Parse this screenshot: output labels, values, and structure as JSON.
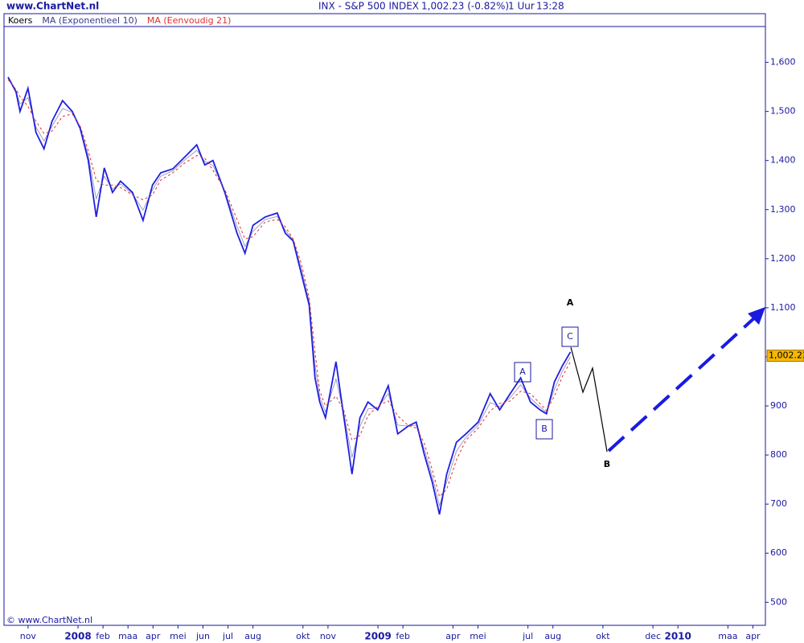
{
  "chart_data": {
    "type": "line",
    "site": "www.ChartNet.nl",
    "title": "INX - S&P 500 INDEX",
    "quote": "1,002.23 (-0.82%)",
    "interval": "1 Uur",
    "time": "13:28",
    "footer": "© www.ChartNet.nl",
    "x": [
      -0.8,
      -0.48,
      -0.32,
      0,
      0.32,
      0.64,
      0.96,
      1.38,
      1.77,
      2.09,
      2.41,
      2.73,
      3.05,
      3.38,
      3.7,
      4.18,
      4.6,
      4.98,
      5.31,
      5.79,
      6.27,
      6.75,
      7.07,
      7.4,
      7.88,
      8.36,
      8.68,
      9.0,
      9.49,
      9.97,
      10.29,
      10.61,
      10.93,
      11.25,
      11.48,
      11.67,
      11.9,
      12.32,
      12.64,
      12.96,
      13.28,
      13.6,
      13.99,
      14.41,
      14.79,
      15.21,
      15.53,
      15.85,
      16.17,
      16.46,
      16.75,
      17.14,
      17.52,
      18.01,
      18.49,
      18.87,
      19.29,
      19.71,
      20.1,
      20.48,
      20.74,
      21.06,
      21.38,
      21.7
    ],
    "series": [
      {
        "name": "Koers",
        "color": "#1f1fe0",
        "values": [
          1570,
          1540,
          1500,
          1547,
          1457,
          1424,
          1480,
          1522,
          1500,
          1465,
          1400,
          1285,
          1385,
          1335,
          1358,
          1335,
          1278,
          1350,
          1375,
          1383,
          1407,
          1432,
          1391,
          1400,
          1334,
          1252,
          1211,
          1268,
          1285,
          1293,
          1252,
          1236,
          1170,
          1105,
          957,
          908,
          876,
          990,
          876,
          761,
          876,
          908,
          892,
          941,
          843,
          859,
          867,
          802,
          745,
          679,
          761,
          826,
          843,
          867,
          925,
          892,
          925,
          957,
          908,
          892,
          884,
          949,
          982,
          1010
        ]
      },
      {
        "name": "MA (Exponentieel 10)",
        "color": "#3a3a8c",
        "values": [
          1568,
          1542,
          1515,
          1528,
          1468,
          1440,
          1470,
          1506,
          1498,
          1468,
          1410,
          1322,
          1368,
          1342,
          1352,
          1332,
          1299,
          1340,
          1368,
          1379,
          1401,
          1421,
          1398,
          1390,
          1337,
          1266,
          1225,
          1256,
          1280,
          1286,
          1258,
          1238,
          1180,
          1112,
          983,
          919,
          888,
          955,
          883,
          795,
          858,
          894,
          896,
          925,
          861,
          859,
          861,
          813,
          757,
          697,
          745,
          808,
          836,
          861,
          907,
          898,
          917,
          943,
          916,
          898,
          887,
          934,
          971,
          1000
        ]
      },
      {
        "name": "MA (Eenvoudig 21)",
        "color": "#e03030",
        "values": [
          1565,
          1545,
          1530,
          1510,
          1480,
          1455,
          1460,
          1490,
          1495,
          1470,
          1420,
          1360,
          1350,
          1350,
          1345,
          1330,
          1320,
          1330,
          1360,
          1375,
          1395,
          1410,
          1405,
          1380,
          1340,
          1280,
          1240,
          1245,
          1275,
          1280,
          1265,
          1240,
          1190,
          1120,
          1010,
          930,
          900,
          920,
          890,
          830,
          840,
          880,
          900,
          910,
          880,
          860,
          855,
          825,
          770,
          715,
          730,
          790,
          830,
          855,
          890,
          905,
          910,
          930,
          925,
          905,
          890,
          920,
          960,
          990
        ]
      }
    ],
    "current": {
      "value": 1002.23,
      "label": "1,002.23"
    },
    "ylim": [
      453,
      1673
    ],
    "yticks": [
      500,
      600,
      700,
      800,
      900,
      {
        "value": 1000,
        "label": "1,000"
      },
      {
        "value": 1100,
        "label": "1,100"
      },
      {
        "value": 1200,
        "label": "1,200"
      },
      {
        "value": 1300,
        "label": "1,300"
      },
      {
        "value": 1400,
        "label": "1,400"
      },
      {
        "value": 1500,
        "label": "1,500"
      },
      {
        "value": 1600,
        "label": "1,600"
      }
    ],
    "xlim": [
      -0.96,
      29.5
    ],
    "xticks": [
      {
        "value": 0,
        "label": "nov"
      },
      {
        "value": 2,
        "label": "2008"
      },
      {
        "value": 3,
        "label": "feb"
      },
      {
        "value": 4,
        "label": "maa"
      },
      {
        "value": 5,
        "label": "apr"
      },
      {
        "value": 6,
        "label": "mei"
      },
      {
        "value": 7,
        "label": "jun"
      },
      {
        "value": 8,
        "label": "jul"
      },
      {
        "value": 9,
        "label": "aug"
      },
      {
        "value": 11,
        "label": "okt"
      },
      {
        "value": 12,
        "label": "nov"
      },
      {
        "value": 14,
        "label": "2009"
      },
      {
        "value": 15,
        "label": "feb"
      },
      {
        "value": 17,
        "label": "apr"
      },
      {
        "value": 18,
        "label": "mei"
      },
      {
        "value": 20,
        "label": "jul"
      },
      {
        "value": 21,
        "label": "aug"
      },
      {
        "value": 23,
        "label": "okt"
      },
      {
        "value": 25,
        "label": "dec"
      },
      {
        "value": 26,
        "label": "2010"
      },
      {
        "value": 28,
        "label": "maa"
      },
      {
        "value": 29,
        "label": "apr"
      }
    ],
    "annotations": [
      "A",
      "B",
      "C",
      "A",
      "B"
    ]
  }
}
